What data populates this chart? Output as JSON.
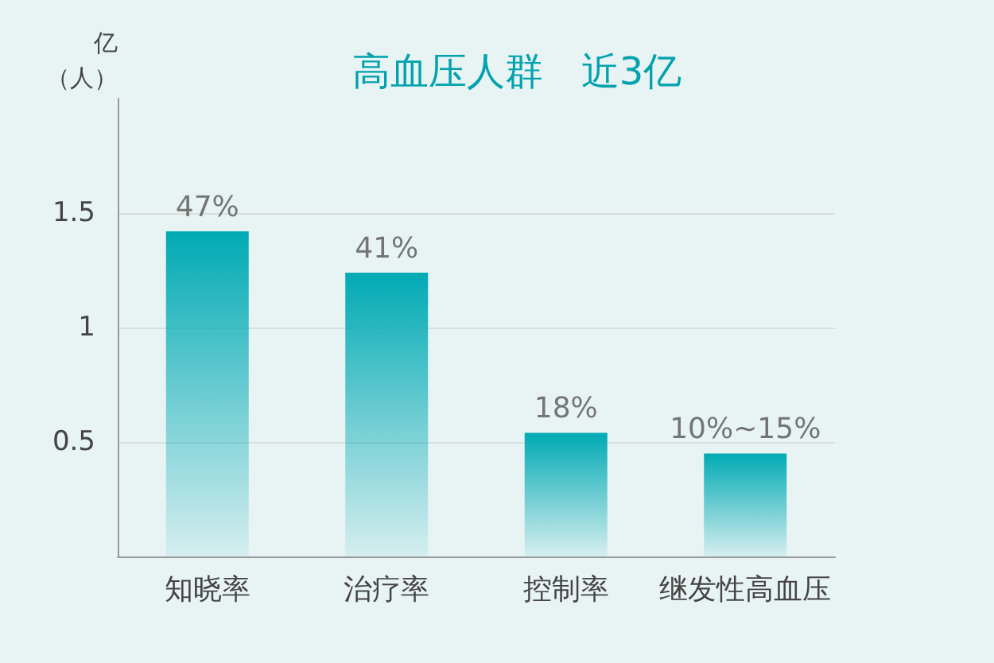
{
  "chart_data": {
    "type": "bar",
    "title": "高血压人群　近3亿",
    "ylabel": "亿（人）",
    "categories": [
      "知晓率",
      "治疗率",
      "控制率",
      "继发性高血压"
    ],
    "values": [
      1.42,
      1.24,
      0.54,
      0.45
    ],
    "annotations": [
      {
        "text": "47%",
        "x": "知晓率",
        "y": 1.42
      },
      {
        "text": "41%",
        "x": "治疗率",
        "y": 1.24
      },
      {
        "text": "18%",
        "x": "控制率",
        "y": 0.54
      },
      {
        "text": "10%~15%",
        "x": "继发性高血压",
        "y": 0.45
      }
    ],
    "color": "#00aab4",
    "ylim": [
      0,
      2.0
    ],
    "yticks": [
      0.5,
      1,
      1.5
    ],
    "grid": "y"
  }
}
